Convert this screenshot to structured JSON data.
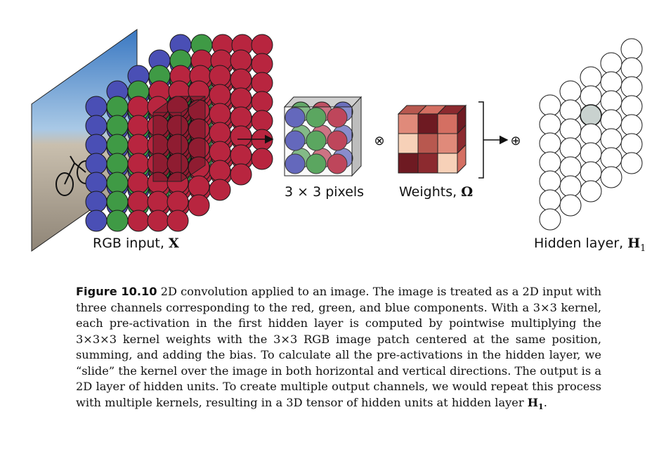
{
  "labels": {
    "rgb_input": "RGB input,",
    "rgb_symbol": "X",
    "pixels": "3 × 3 pixels",
    "weights": "Weights,",
    "weights_symbol": "Ω",
    "hidden": "Hidden layer,",
    "hidden_symbol": "H",
    "hidden_subscript": "1",
    "multiply_symbol": "⊗",
    "add_symbol": "⊕"
  },
  "caption": {
    "label": "Figure 10.10",
    "text": "2D convolution applied to an image. The image is treated as a 2D input with three channels corresponding to the red, green, and blue components. With a 3×3 kernel, each pre-activation in the first hidden layer is computed by pointwise multiplying the 3×3×3 kernel weights with the 3×3 RGB image patch centered at the same position, summing, and adding the bias. To calculate all the pre-activations in the hidden layer, we “slide” the kernel over the image in both horizontal and vertical directions. The output is a 2D layer of hidden units. To create multiple output channels, we would repeat this process with multiple kernels, resulting in a 3D tensor of hidden units at hidden layer",
    "end_symbol": "H",
    "end_subscript": "1",
    "end_punct": "."
  },
  "colors": {
    "blue": "#4a4fb5",
    "green": "#3f9a45",
    "red": "#b8253f",
    "weight_shades": [
      "#e08a7a",
      "#6e1a22",
      "#f7d1b8",
      "#b8584f",
      "#d46f62",
      "#8c2a2f"
    ]
  }
}
